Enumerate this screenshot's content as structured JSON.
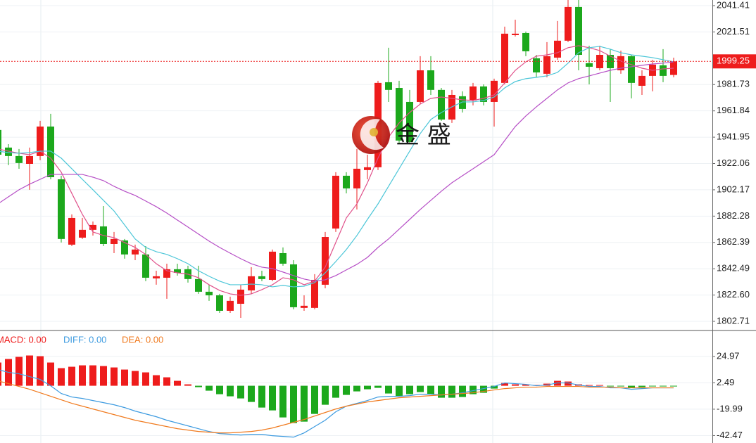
{
  "watermark": {
    "text": "金 盛"
  },
  "chart_data": [
    {
      "type": "candlestick",
      "up_color": "#ee1c1c",
      "down_color": "#1ca81c",
      "open": [
        1947.4,
        1934.1,
        1927.7,
        1921.8,
        1927.7,
        1950.0,
        1910.1,
        1860.7,
        1866.0,
        1871.9,
        1874.5,
        1861.2,
        1863.9,
        1853.3,
        1853.3,
        1835.2,
        1835.7,
        1842.1,
        1842.1,
        1834.7,
        1825.1,
        1822.4,
        1810.7,
        1816.0,
        1826.1,
        1836.8,
        1834.1,
        1854.3,
        1845.8,
        1812.9,
        1812.9,
        1830.4,
        1872.9,
        1912.8,
        1903.2,
        1917.1,
        1919.2,
        1983.5,
        1979.2,
        1968.6,
        1968.6,
        1992.5,
        1977.7,
        1955.3,
        1972.9,
        1969.7,
        1980.3,
        1968.6,
        1983.0,
        2019.1,
        2020.7,
        2001.6,
        1989.9,
        2002.1,
        2014.9,
        2040.4,
        1997.9,
        1994.1,
        2004.2,
        1992.5,
        2003.2,
        1980.8,
        1988.3,
        1996.3,
        1989.0
      ],
      "high": [
        1950.0,
        1936.7,
        1933.0,
        1934.1,
        1954.3,
        1959.6,
        1912.8,
        1883.6,
        1880.9,
        1878.2,
        1889.9,
        1870.3,
        1865.0,
        1860.7,
        1859.6,
        1841.0,
        1846.3,
        1846.3,
        1844.8,
        1844.8,
        1830.4,
        1823.5,
        1821.4,
        1830.4,
        1843.7,
        1841.0,
        1857.0,
        1858.6,
        1849.0,
        1822.4,
        1838.4,
        1870.3,
        1915.5,
        1915.5,
        1933.0,
        1928.7,
        1984.6,
        2009.6,
        1984.6,
        1977.7,
        2003.2,
        2003.2,
        1979.2,
        1977.7,
        1976.6,
        1983.0,
        1981.9,
        1986.2,
        2025.5,
        2030.8,
        2021.8,
        2004.2,
        2013.8,
        2029.8,
        2045.7,
        2045.7,
        2011.1,
        2011.1,
        2008.5,
        2007.4,
        2004.2,
        1992.5,
        2000.5,
        2008.5,
        2002.1
      ],
      "low": [
        1926.1,
        1920.8,
        1918.1,
        1902.2,
        1924.5,
        1910.1,
        1862.3,
        1859.6,
        1865.0,
        1867.6,
        1859.6,
        1854.3,
        1850.1,
        1849.0,
        1833.1,
        1830.4,
        1819.8,
        1837.3,
        1832.0,
        1823.5,
        1818.2,
        1809.1,
        1809.1,
        1805.4,
        1823.5,
        1833.1,
        1833.1,
        1844.8,
        1811.8,
        1810.7,
        1811.8,
        1827.7,
        1870.3,
        1899.5,
        1887.3,
        1910.1,
        1917.1,
        1968.6,
        1936.7,
        1936.7,
        1967.0,
        1973.9,
        1954.3,
        1952.7,
        1960.6,
        1966.0,
        1966.0,
        1950.0,
        1981.9,
        2018.1,
        2003.2,
        1987.2,
        1987.2,
        2000.5,
        2013.8,
        1992.5,
        1981.9,
        1992.5,
        1968.6,
        1989.9,
        1971.3,
        1973.9,
        1976.6,
        1983.5,
        1987.2
      ],
      "close": [
        1928.7,
        1927.7,
        1922.4,
        1927.7,
        1950.0,
        1911.7,
        1865.0,
        1880.9,
        1871.9,
        1875.6,
        1861.2,
        1865.0,
        1853.3,
        1857.0,
        1835.7,
        1836.8,
        1842.1,
        1839.4,
        1834.7,
        1825.1,
        1822.4,
        1810.7,
        1818.2,
        1826.7,
        1836.8,
        1834.7,
        1855.4,
        1846.3,
        1813.4,
        1814.5,
        1834.1,
        1866.5,
        1912.8,
        1903.2,
        1918.1,
        1919.2,
        1983.0,
        1977.7,
        1939.4,
        1938.3,
        1992.5,
        1977.7,
        1955.3,
        1973.9,
        1963.3,
        1980.3,
        1968.6,
        1984.6,
        2020.2,
        2020.2,
        2006.9,
        1990.9,
        2003.2,
        2014.9,
        2040.4,
        2004.2,
        1995.2,
        2004.2,
        1994.1,
        2003.2,
        1983.0,
        1988.3,
        1996.8,
        1988.3,
        1999.25
      ],
      "series": [
        {
          "color": "#e0508a",
          "values": [
            1933.0,
            1931.4,
            1929.8,
            1928.7,
            1931.4,
            1926.1,
            1915.5,
            1899.5,
            1883.6,
            1870.3,
            1867.6,
            1866.0,
            1862.3,
            1858.6,
            1853.3,
            1846.3,
            1841.0,
            1839.4,
            1838.4,
            1835.7,
            1830.4,
            1826.1,
            1823.5,
            1822.4,
            1823.5,
            1826.7,
            1830.4,
            1835.7,
            1834.1,
            1830.4,
            1833.1,
            1843.7,
            1862.3,
            1880.9,
            1891.5,
            1907.5,
            1926.1,
            1942.0,
            1952.7,
            1960.6,
            1967.0,
            1971.3,
            1972.3,
            1971.3,
            1970.2,
            1969.7,
            1971.3,
            1973.9,
            1983.0,
            1992.5,
            1998.9,
            2003.2,
            2004.2,
            2005.8,
            2009.6,
            2011.1,
            2009.6,
            2007.4,
            2003.2,
            1999.5,
            1996.8,
            1994.1,
            1992.5,
            1993.6,
            1994.1
          ]
        },
        {
          "color": "#4cc6d8",
          "values": [
            1931.4,
            1930.3,
            1929.8,
            1930.3,
            1931.4,
            1931.4,
            1926.1,
            1918.1,
            1910.1,
            1902.2,
            1894.2,
            1886.2,
            1875.6,
            1865.0,
            1858.6,
            1855.4,
            1853.3,
            1850.1,
            1846.3,
            1841.0,
            1836.8,
            1833.1,
            1830.4,
            1830.4,
            1830.9,
            1830.4,
            1828.8,
            1829.9,
            1828.8,
            1829.3,
            1832.0,
            1839.4,
            1847.9,
            1857.0,
            1867.6,
            1879.8,
            1891.5,
            1904.8,
            1918.1,
            1931.4,
            1944.7,
            1955.3,
            1960.6,
            1964.9,
            1968.6,
            1968.6,
            1969.7,
            1972.3,
            1979.2,
            1984.0,
            1986.2,
            1987.2,
            1988.3,
            1990.9,
            1997.9,
            2005.8,
            2009.6,
            2010.6,
            2008.5,
            2005.8,
            2004.2,
            2003.2,
            2002.1,
            2000.5,
            1998.9
          ]
        },
        {
          "color": "#b64fc6",
          "values": [
            1891.5,
            1896.9,
            1902.2,
            1906.4,
            1910.1,
            1913.8,
            1913.8,
            1913.8,
            1913.8,
            1911.7,
            1909.1,
            1904.8,
            1901.1,
            1897.9,
            1893.7,
            1889.4,
            1884.6,
            1879.3,
            1874.0,
            1868.7,
            1863.4,
            1858.6,
            1854.3,
            1850.1,
            1846.3,
            1843.7,
            1842.6,
            1840.0,
            1837.3,
            1834.7,
            1833.1,
            1834.1,
            1837.3,
            1841.6,
            1845.8,
            1851.1,
            1858.6,
            1865.0,
            1872.4,
            1879.8,
            1887.3,
            1894.2,
            1901.1,
            1907.5,
            1912.8,
            1918.1,
            1923.4,
            1928.7,
            1939.4,
            1950.0,
            1958.0,
            1964.9,
            1971.3,
            1977.7,
            1983.0,
            1986.2,
            1988.3,
            1990.4,
            1992.5,
            1994.1,
            1995.2,
            1996.3,
            1997.3,
            1997.9,
            1998.9
          ]
        }
      ],
      "ylim": [
        1796.87,
        2045.66
      ],
      "yticks": [
        2041.41,
        2021.51,
        1981.73,
        1961.84,
        1941.95,
        1922.06,
        1902.17,
        1882.28,
        1862.39,
        1842.49,
        {
          "value": 1822.6,
          "label": "1822.60"
        },
        1802.71
      ],
      "grid": true
    },
    {
      "type": "macd",
      "series": [
        {
          "name": "MACD: 0.00",
          "color": "#ee1c1c",
          "negative_color": "#1ca81c",
          "values": [
            19.8,
            22.8,
            24.6,
            25.8,
            25.2,
            19.8,
            15.0,
            16.2,
            17.4,
            17.4,
            16.8,
            15.6,
            13.8,
            12.6,
            11.4,
            9.0,
            7.2,
            4.2,
            1.2,
            -1.2,
            -4.2,
            -7.2,
            -9.0,
            -10.8,
            -13.8,
            -18.6,
            -21.0,
            -27.0,
            -31.8,
            -30.6,
            -24.0,
            -16.2,
            -10.2,
            -7.8,
            -4.8,
            -3.0,
            -1.8,
            -6.6,
            -9.0,
            -7.2,
            -5.4,
            -7.2,
            -10.2,
            -10.2,
            -9.6,
            -7.2,
            -6.0,
            -2.4,
            2.4,
            1.2,
            1.2,
            0.6,
            1.8,
            4.2,
            3.6,
            1.2,
            0.6,
            0.6,
            -0.6,
            -0.6,
            -1.8,
            -1.2,
            -0.6,
            -0.6,
            -0.3
          ]
        },
        {
          "name": "DIFF: 0.00",
          "color": "#3d9be0",
          "values": [
            13.8,
            11.4,
            10.2,
            7.8,
            5.4,
            0,
            -6.6,
            -9.6,
            -10.8,
            -12.6,
            -14.4,
            -16.2,
            -18.6,
            -21.6,
            -24.0,
            -26.4,
            -29.4,
            -31.8,
            -34.2,
            -36.6,
            -39.0,
            -40.8,
            -41.4,
            -42.0,
            -41.4,
            -41.4,
            -42.6,
            -43.2,
            -43.8,
            -40.2,
            -34.8,
            -29.4,
            -22.2,
            -17.4,
            -15.0,
            -12.6,
            -9.6,
            -9.0,
            -9.0,
            -8.4,
            -7.2,
            -7.2,
            -7.8,
            -7.2,
            -6.0,
            -4.2,
            -2.4,
            -0.6,
            2.4,
            1.8,
            1.2,
            0,
            0.6,
            2.4,
            2.4,
            0.6,
            -0.6,
            -0.6,
            -1.8,
            -1.8,
            -3.0,
            -2.4,
            -1.8,
            -1.8,
            -1.8
          ]
        },
        {
          "name": "DEA: 0.00",
          "color": "#f07a1e",
          "values": [
            4.2,
            1.8,
            -0.6,
            -3.0,
            -6.0,
            -9.0,
            -12.0,
            -15.0,
            -17.4,
            -19.8,
            -22.2,
            -24.6,
            -27.0,
            -29.4,
            -31.2,
            -33.0,
            -34.8,
            -36.6,
            -37.8,
            -39.0,
            -39.6,
            -40.2,
            -40.2,
            -39.6,
            -39.0,
            -37.8,
            -36.0,
            -33.6,
            -31.2,
            -28.8,
            -25.8,
            -22.8,
            -19.8,
            -17.4,
            -15.6,
            -13.8,
            -12.6,
            -11.4,
            -10.2,
            -9.6,
            -9.0,
            -8.4,
            -7.8,
            -7.2,
            -6.6,
            -6.0,
            -4.8,
            -3.6,
            -2.4,
            -1.8,
            -1.2,
            -1.2,
            -0.6,
            -0.6,
            -0.6,
            -0.6,
            -1.2,
            -1.2,
            -1.2,
            -1.8,
            -1.8,
            -1.8,
            -1.8,
            -1.8,
            -1.8
          ]
        }
      ],
      "ylim": [
        -48.8,
        45.9
      ],
      "yticks": [
        24.97,
        2.49,
        -19.99,
        -42.47
      ],
      "grid": true
    }
  ]
}
